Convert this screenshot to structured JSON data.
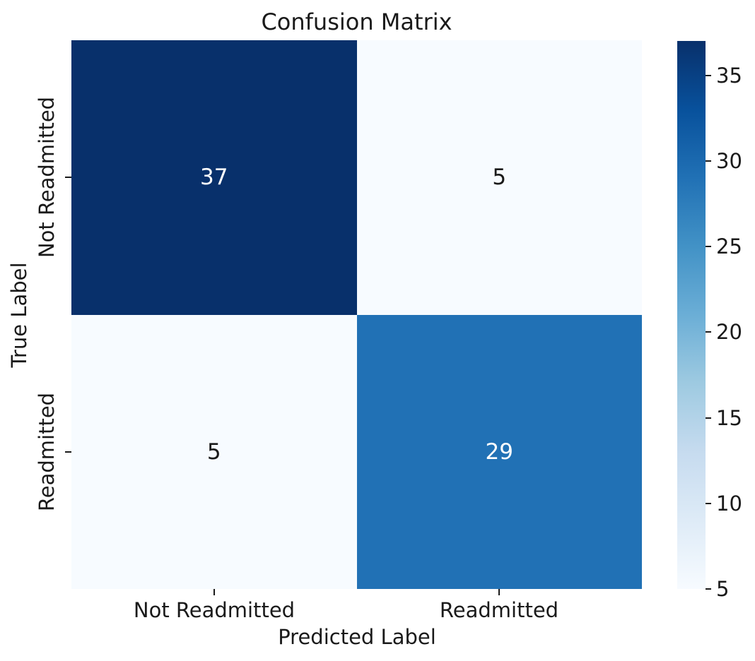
{
  "title": "Confusion Matrix",
  "axes": {
    "x_label": "Predicted Label",
    "y_label": "True Label",
    "x_tick_labels": [
      "Not Readmitted",
      "Readmitted"
    ],
    "y_tick_labels": [
      "Not Readmitted",
      "Readmitted"
    ]
  },
  "chart_data": {
    "type": "heatmap",
    "title": "Confusion Matrix",
    "xlabel": "Predicted Label",
    "ylabel": "True Label",
    "x_categories": [
      "Not Readmitted",
      "Readmitted"
    ],
    "y_categories": [
      "Not Readmitted",
      "Readmitted"
    ],
    "values": [
      [
        37,
        5
      ],
      [
        5,
        29
      ]
    ],
    "vmin": 5,
    "vmax": 37,
    "colormap": "Blues",
    "colorbar_ticks": [
      5,
      10,
      15,
      20,
      25,
      30,
      35
    ],
    "legend_position": "right-colorbar",
    "grid": false
  },
  "cells": [
    {
      "value": "37",
      "bg": "#08306b",
      "fg": "#ffffff"
    },
    {
      "value": "5",
      "bg": "#f7fbff",
      "fg": "#1a1a1a"
    },
    {
      "value": "5",
      "bg": "#f7fbff",
      "fg": "#1a1a1a"
    },
    {
      "value": "29",
      "bg": "#2171b5",
      "fg": "#ffffff"
    }
  ],
  "colors": {
    "darkest_cell": "#08306b",
    "medium_cell": "#2171b5",
    "lightest_cell": "#f7fbff",
    "text": "#1a1a1a",
    "background": "#ffffff"
  },
  "colorbar": {
    "gradient_stops": [
      "#f7fbff",
      "#deebf7",
      "#c6dbef",
      "#9ecae1",
      "#6baed6",
      "#4292c6",
      "#2171b5",
      "#08519c",
      "#08306b"
    ]
  }
}
